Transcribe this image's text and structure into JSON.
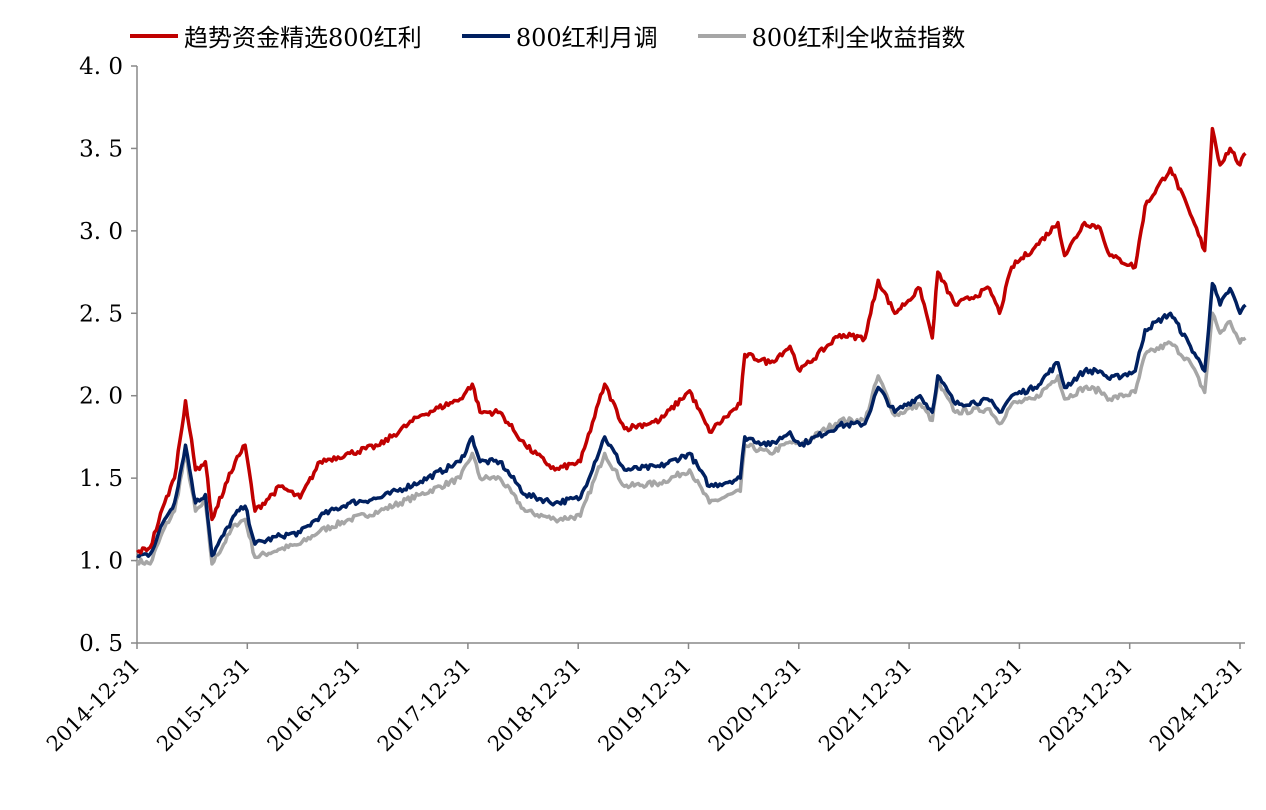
{
  "chart_data": {
    "type": "line",
    "title": "",
    "xlabel": "",
    "ylabel": "",
    "ylim": [
      0.5,
      4.0
    ],
    "yticks": [
      "4. 0",
      "3. 5",
      "3. 0",
      "2. 5",
      "2. 0",
      "1. 5",
      "1. 0",
      "0. 5"
    ],
    "ytick_values": [
      4.0,
      3.5,
      3.0,
      2.5,
      2.0,
      1.5,
      1.0,
      0.5
    ],
    "xlim": [
      2015.0,
      2025.08
    ],
    "xticks": [
      "2014-12-31",
      "2015-12-31",
      "2016-12-31",
      "2017-12-31",
      "2018-12-31",
      "2019-12-31",
      "2020-12-31",
      "2021-12-31",
      "2022-12-31",
      "2023-12-31",
      "2024-12-31"
    ],
    "xtick_values": [
      2015,
      2016,
      2017,
      2018,
      2019,
      2020,
      2021,
      2022,
      2023,
      2024,
      2025
    ],
    "grid": false,
    "legend_position": "top",
    "x": [
      2015.0,
      2015.12,
      2015.25,
      2015.34,
      2015.44,
      2015.53,
      2015.62,
      2015.68,
      2015.89,
      2015.98,
      2016.07,
      2016.3,
      2016.48,
      2016.66,
      2016.93,
      2017.2,
      2017.57,
      2017.93,
      2018.04,
      2018.11,
      2018.29,
      2018.52,
      2018.79,
      2019.02,
      2019.24,
      2019.42,
      2019.74,
      2020.01,
      2020.19,
      2020.47,
      2020.51,
      2020.74,
      2020.92,
      2021.01,
      2021.37,
      2021.6,
      2021.72,
      2021.87,
      2022.1,
      2022.21,
      2022.26,
      2022.42,
      2022.73,
      2022.82,
      2022.93,
      2023.14,
      2023.35,
      2023.41,
      2023.59,
      2023.73,
      2023.82,
      2024.05,
      2024.14,
      2024.37,
      2024.55,
      2024.68,
      2024.75,
      2024.82,
      2024.91,
      2025.0,
      2025.05
    ],
    "series": [
      {
        "name": "趋势资金精选800红利",
        "color": "#C00000",
        "values": [
          1.05,
          1.08,
          1.35,
          1.5,
          1.97,
          1.55,
          1.6,
          1.25,
          1.6,
          1.7,
          1.3,
          1.45,
          1.38,
          1.6,
          1.65,
          1.7,
          1.88,
          1.98,
          2.07,
          1.9,
          1.9,
          1.7,
          1.55,
          1.6,
          2.07,
          1.8,
          1.85,
          2.03,
          1.78,
          1.95,
          2.25,
          2.2,
          2.3,
          2.15,
          2.37,
          2.35,
          2.7,
          2.5,
          2.65,
          2.35,
          2.75,
          2.55,
          2.65,
          2.5,
          2.78,
          2.9,
          3.05,
          2.85,
          3.05,
          3.02,
          2.85,
          2.78,
          3.15,
          3.38,
          3.1,
          2.88,
          3.62,
          3.4,
          3.5,
          3.4,
          3.47
        ]
      },
      {
        "name": "800红利月调",
        "color": "#002060",
        "values": [
          1.03,
          1.04,
          1.25,
          1.35,
          1.7,
          1.35,
          1.4,
          1.03,
          1.28,
          1.33,
          1.1,
          1.15,
          1.17,
          1.27,
          1.35,
          1.38,
          1.48,
          1.6,
          1.75,
          1.6,
          1.6,
          1.4,
          1.35,
          1.38,
          1.75,
          1.55,
          1.57,
          1.65,
          1.45,
          1.5,
          1.75,
          1.7,
          1.78,
          1.7,
          1.82,
          1.83,
          2.05,
          1.9,
          2.0,
          1.9,
          2.12,
          1.95,
          1.97,
          1.9,
          2.0,
          2.05,
          2.2,
          2.05,
          2.15,
          2.15,
          2.1,
          2.15,
          2.4,
          2.5,
          2.3,
          2.15,
          2.68,
          2.55,
          2.65,
          2.5,
          2.55
        ]
      },
      {
        "name": "800红利全收益指数",
        "color": "#A6A6A6",
        "values": [
          1.0,
          0.98,
          1.2,
          1.3,
          1.65,
          1.3,
          1.35,
          0.98,
          1.22,
          1.25,
          1.02,
          1.07,
          1.1,
          1.18,
          1.25,
          1.3,
          1.4,
          1.5,
          1.65,
          1.5,
          1.5,
          1.3,
          1.25,
          1.27,
          1.65,
          1.45,
          1.47,
          1.55,
          1.35,
          1.42,
          1.7,
          1.65,
          1.72,
          1.7,
          1.85,
          1.85,
          2.12,
          1.88,
          1.95,
          1.85,
          2.08,
          1.9,
          1.92,
          1.83,
          1.95,
          1.98,
          2.12,
          1.98,
          2.05,
          2.03,
          1.98,
          2.02,
          2.25,
          2.32,
          2.2,
          2.02,
          2.5,
          2.38,
          2.45,
          2.32,
          2.35
        ]
      }
    ]
  }
}
